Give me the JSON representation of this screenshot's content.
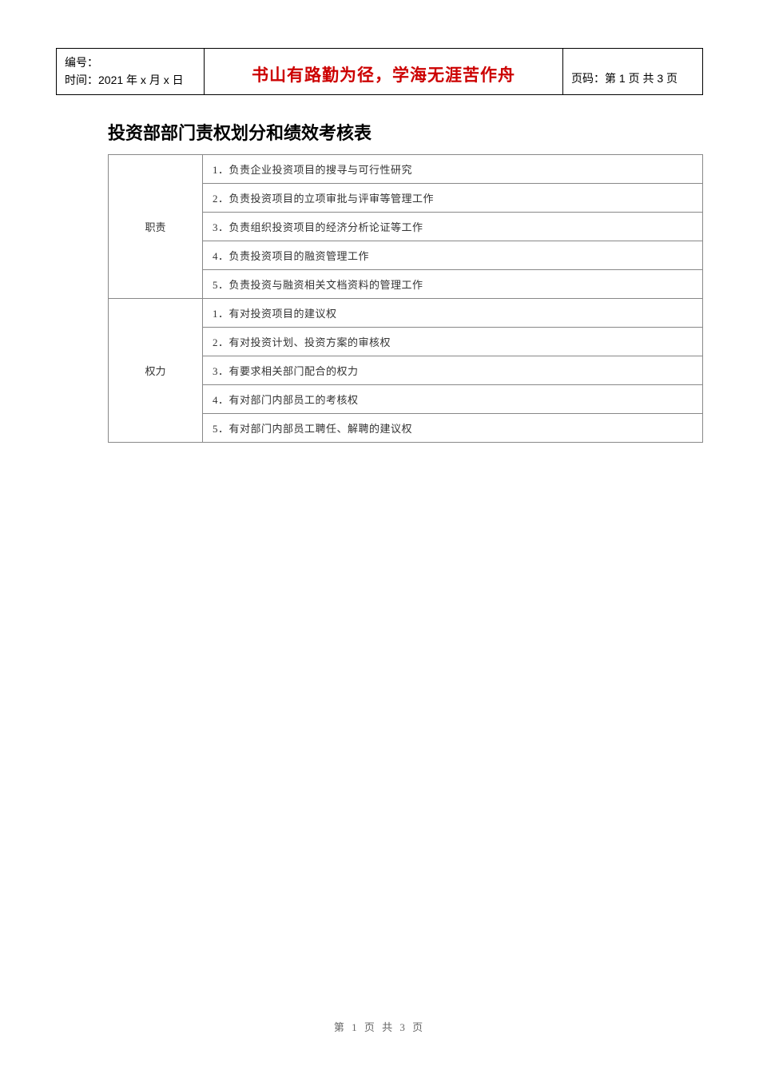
{
  "header": {
    "left_label1": "编号：",
    "left_label2": "时间：2021 年 x 月 x 日",
    "center": "书山有路勤为径，学海无涯苦作舟",
    "right": "页码：第 1 页  共 3 页"
  },
  "title": "投资部部门责权划分和绩效考核表",
  "sections": [
    {
      "label": "职责",
      "items": [
        "1．负责企业投资项目的搜寻与可行性研究",
        "2．负责投资项目的立项审批与评审等管理工作",
        "3．负责组织投资项目的经济分析论证等工作",
        "4．负责投资项目的融资管理工作",
        "5．负责投资与融资相关文档资料的管理工作"
      ]
    },
    {
      "label": "权力",
      "items": [
        "1．有对投资项目的建议权",
        "2．有对投资计划、投资方案的审核权",
        "3．有要求相关部门配合的权力",
        "4．有对部门内部员工的考核权",
        "5．有对部门内部员工聘任、解聘的建议权"
      ]
    }
  ],
  "footer": "第 1 页 共 3 页",
  "colors": {
    "accent": "#cc0000",
    "border": "#888888",
    "text": "#000000",
    "cell_text": "#333333",
    "footer_text": "#666666",
    "background": "#ffffff"
  },
  "fonts": {
    "title_size_pt": 22,
    "header_center_size_pt": 21,
    "header_side_size_pt": 14,
    "cell_size_pt": 13,
    "footer_size_pt": 13
  }
}
